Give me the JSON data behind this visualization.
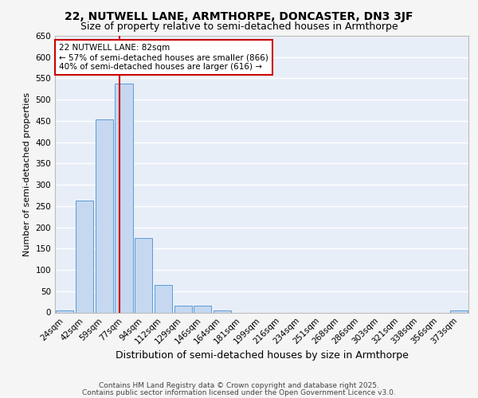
{
  "title1": "22, NUTWELL LANE, ARMTHORPE, DONCASTER, DN3 3JF",
  "title2": "Size of property relative to semi-detached houses in Armthorpe",
  "xlabel": "Distribution of semi-detached houses by size in Armthorpe",
  "ylabel": "Number of semi-detached properties",
  "bin_labels": [
    "24sqm",
    "42sqm",
    "59sqm",
    "77sqm",
    "94sqm",
    "112sqm",
    "129sqm",
    "146sqm",
    "164sqm",
    "181sqm",
    "199sqm",
    "216sqm",
    "234sqm",
    "251sqm",
    "268sqm",
    "286sqm",
    "303sqm",
    "321sqm",
    "338sqm",
    "356sqm",
    "373sqm"
  ],
  "bar_values": [
    5,
    262,
    453,
    537,
    175,
    65,
    16,
    16,
    4,
    0,
    0,
    0,
    0,
    0,
    0,
    0,
    0,
    0,
    0,
    0,
    5
  ],
  "bar_color": "#c5d8f0",
  "bar_edge_color": "#5b9bd5",
  "bg_color": "#e8eef8",
  "grid_color": "#ffffff",
  "vline_color": "#cc0000",
  "annotation_text": "22 NUTWELL LANE: 82sqm\n← 57% of semi-detached houses are smaller (866)\n40% of semi-detached houses are larger (616) →",
  "annotation_box_color": "#ffffff",
  "annotation_box_edge": "#cc0000",
  "ylim": [
    0,
    650
  ],
  "yticks": [
    0,
    50,
    100,
    150,
    200,
    250,
    300,
    350,
    400,
    450,
    500,
    550,
    600,
    650
  ],
  "footnote1": "Contains HM Land Registry data © Crown copyright and database right 2025.",
  "footnote2": "Contains public sector information licensed under the Open Government Licence v3.0.",
  "fig_bg": "#f5f5f5",
  "title1_fontsize": 10,
  "title2_fontsize": 9,
  "xlabel_fontsize": 9,
  "ylabel_fontsize": 8,
  "tick_fontsize": 7.5,
  "annotation_fontsize": 7.5,
  "footnote_fontsize": 6.5
}
